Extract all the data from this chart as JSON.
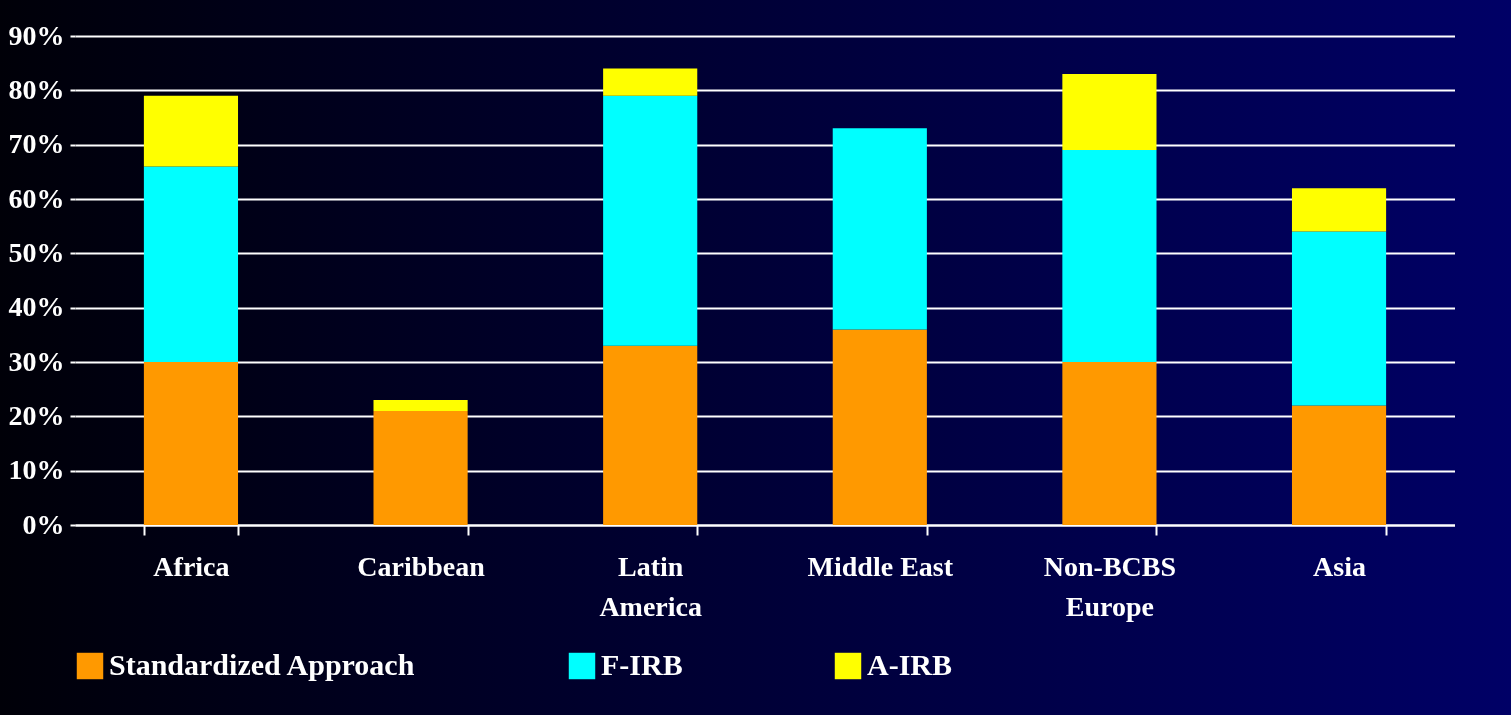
{
  "chart_data": {
    "type": "bar",
    "stacked": true,
    "grid": "y",
    "legend": "bottom",
    "categories": [
      "Africa",
      "Caribbean",
      "Latin America",
      "Middle East",
      "Non-BCBS Europe",
      "Asia"
    ],
    "ylim": [
      0,
      90
    ],
    "yticks": [
      {
        "value": 0,
        "label": "0%"
      },
      {
        "value": 10,
        "label": "10%"
      },
      {
        "value": 20,
        "label": "20%"
      },
      {
        "value": 30,
        "label": "30%"
      },
      {
        "value": 40,
        "label": "40%"
      },
      {
        "value": 50,
        "label": "50%"
      },
      {
        "value": 60,
        "label": "60%"
      },
      {
        "value": 70,
        "label": "70%"
      },
      {
        "value": 80,
        "label": "80%"
      },
      {
        "value": 90,
        "label": "90%"
      }
    ],
    "series": [
      {
        "name": "Standardized Approach",
        "color": "#ff9900",
        "values": [
          30,
          21,
          33,
          36,
          30,
          22
        ]
      },
      {
        "name": "F-IRB",
        "color": "#00ffff",
        "values": [
          36,
          0,
          46,
          37,
          39,
          32
        ]
      },
      {
        "name": "A-IRB",
        "color": "#ffff00",
        "values": [
          13,
          2,
          5,
          0,
          14,
          8
        ]
      }
    ]
  }
}
